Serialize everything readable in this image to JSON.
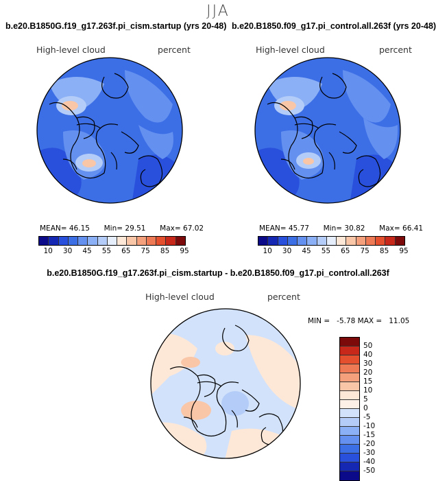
{
  "season": "JJA",
  "panels": [
    {
      "title": "b.e20.B1850G.f19_g17.263f.pi_cism.startup (yrs 20-48)",
      "variable": "High-level cloud",
      "units": "percent",
      "stats": {
        "mean_label": "MEAN=",
        "mean": "46.15",
        "min_label": "Min=",
        "min": "29.51",
        "max_label": "Max=",
        "max": "67.02"
      }
    },
    {
      "title": "b.e20.B1850.f09_g17.pi_control.all.263f (yrs 20-48)",
      "variable": "High-level cloud",
      "units": "percent",
      "stats": {
        "mean_label": "MEAN=",
        "mean": "45.77",
        "min_label": "Min=",
        "min": "30.82",
        "max_label": "Max=",
        "max": "66.41"
      }
    }
  ],
  "diff": {
    "title": "b.e20.B1850G.f19_g17.263f.pi_cism.startup - b.e20.B1850.f09_g17.pi_control.all.263f",
    "variable": "High-level cloud",
    "units": "percent",
    "stats_text": "MIN =   -5.78 MAX =   11.05"
  },
  "colorbar_h": {
    "colors": [
      "#0b0b8a",
      "#1428b4",
      "#2850dc",
      "#3c6ee6",
      "#6490f0",
      "#8cb0f5",
      "#b4cdf8",
      "#e6eefc",
      "#fde8d8",
      "#f9c6a8",
      "#f5a07c",
      "#ee7a55",
      "#e4502e",
      "#c8281a",
      "#7d0a0a"
    ],
    "tick_labels": [
      "10",
      "30",
      "45",
      "55",
      "65",
      "75",
      "85",
      "95"
    ]
  },
  "colorbar_v": {
    "colors": [
      "#7d0a0a",
      "#c8281a",
      "#e4502e",
      "#ee7a55",
      "#f5a07c",
      "#f9c6a8",
      "#fde8d8",
      "#fdf0e6",
      "#d2e2fa",
      "#b4cdf8",
      "#8cb0f5",
      "#6490f0",
      "#3c6ee6",
      "#2850dc",
      "#1428b4",
      "#0b0b8a"
    ],
    "tick_labels": [
      "50",
      "40",
      "30",
      "20",
      "15",
      "10",
      "5",
      "0",
      "-5",
      "-10",
      "-15",
      "-20",
      "-30",
      "-40",
      "-50"
    ]
  }
}
